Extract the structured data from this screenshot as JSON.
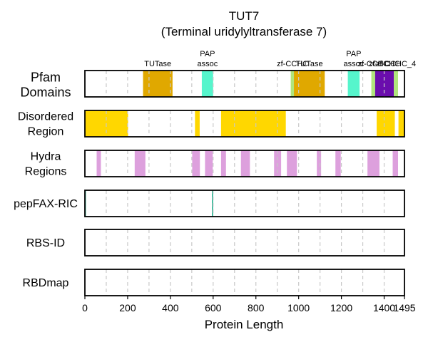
{
  "chart_data": {
    "type": "bar",
    "title": "TUT7",
    "subtitle": "(Terminal uridylyltransferase 7)",
    "xlabel": "Protein Length",
    "xlim": [
      0,
      1495
    ],
    "xticks": [
      0,
      200,
      400,
      600,
      800,
      1000,
      1200,
      1400,
      1495
    ],
    "grid_lines": [
      100,
      200,
      300,
      400,
      500,
      600,
      700,
      800,
      900,
      1000,
      1100,
      1200,
      1300,
      1400
    ],
    "grid": true,
    "rows": [
      {
        "label_lines": [
          "Pfam",
          "Domains"
        ],
        "segments": [
          {
            "start": 272,
            "end": 410,
            "color": "#e0a800",
            "label": "TUTase"
          },
          {
            "start": 547,
            "end": 600,
            "color": "#56f5cc",
            "label": "PAP assoc"
          },
          {
            "start": 963,
            "end": 980,
            "color": "#b0e57c",
            "label": "zf-CCHC"
          },
          {
            "start": 978,
            "end": 1122,
            "color": "#e0a800",
            "label": "TUTase"
          },
          {
            "start": 1230,
            "end": 1285,
            "color": "#56f5cc",
            "label": "PAP assoc"
          },
          {
            "start": 1340,
            "end": 1360,
            "color": "#b0e57c",
            "label": "zf-CCHC"
          },
          {
            "start": 1358,
            "end": 1445,
            "color": "#6a0dad",
            "label": "zf-CCHC"
          },
          {
            "start": 1445,
            "end": 1465,
            "color": "#b0e57c",
            "label": "zf-CCHC_4"
          }
        ]
      },
      {
        "label_lines": [
          "Disordered",
          "Region"
        ],
        "segments": [
          {
            "start": 0,
            "end": 202,
            "color": "#ffd700"
          },
          {
            "start": 515,
            "end": 537,
            "color": "#ffd700"
          },
          {
            "start": 637,
            "end": 940,
            "color": "#ffd700"
          },
          {
            "start": 1365,
            "end": 1450,
            "color": "#ffd700"
          },
          {
            "start": 1467,
            "end": 1495,
            "color": "#ffd700"
          }
        ]
      },
      {
        "label_lines": [
          "Hydra",
          "Regions"
        ],
        "segments": [
          {
            "start": 55,
            "end": 75,
            "color": "#dda0dd"
          },
          {
            "start": 233,
            "end": 283,
            "color": "#dda0dd"
          },
          {
            "start": 502,
            "end": 538,
            "color": "#dda0dd"
          },
          {
            "start": 562,
            "end": 598,
            "color": "#dda0dd"
          },
          {
            "start": 637,
            "end": 660,
            "color": "#dda0dd"
          },
          {
            "start": 730,
            "end": 772,
            "color": "#dda0dd"
          },
          {
            "start": 885,
            "end": 918,
            "color": "#dda0dd"
          },
          {
            "start": 945,
            "end": 992,
            "color": "#dda0dd"
          },
          {
            "start": 1085,
            "end": 1105,
            "color": "#dda0dd"
          },
          {
            "start": 1172,
            "end": 1197,
            "color": "#dda0dd"
          },
          {
            "start": 1322,
            "end": 1378,
            "color": "#dda0dd"
          },
          {
            "start": 1440,
            "end": 1465,
            "color": "#dda0dd"
          }
        ]
      },
      {
        "label_lines": [
          "pepFAX-RIC"
        ],
        "segments": [
          {
            "start": 0,
            "end": 5,
            "color": "#3cb89a"
          },
          {
            "start": 594,
            "end": 600,
            "color": "#3cb89a"
          }
        ]
      },
      {
        "label_lines": [
          "RBS-ID"
        ],
        "segments": []
      },
      {
        "label_lines": [
          "RBDmap"
        ],
        "segments": []
      }
    ]
  }
}
